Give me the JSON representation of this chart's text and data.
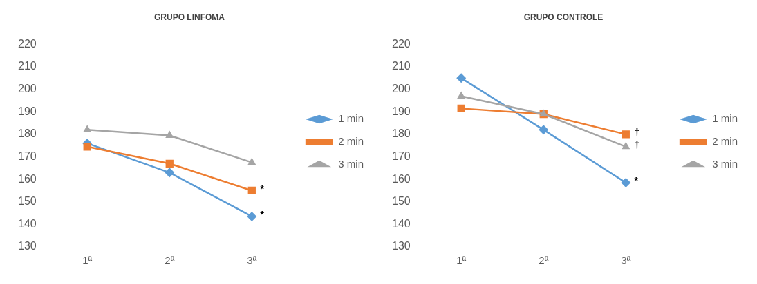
{
  "chart_data": [
    {
      "type": "line",
      "title": "GRUPO LINFOMA",
      "categories": [
        "1ª",
        "2ª",
        "3ª"
      ],
      "series": [
        {
          "name": "1 min",
          "color": "#5b9bd5",
          "marker": "diamond",
          "values": [
            176,
            163,
            143.5
          ]
        },
        {
          "name": "2 min",
          "color": "#ed7d31",
          "marker": "square",
          "values": [
            174.5,
            167,
            155
          ]
        },
        {
          "name": "3 min",
          "color": "#a5a5a5",
          "marker": "triangle",
          "values": [
            182,
            179.5,
            167.5
          ]
        }
      ],
      "ylim": [
        130,
        220
      ],
      "yticks": [
        130,
        140,
        150,
        160,
        170,
        180,
        190,
        200,
        210,
        220
      ],
      "grid": false,
      "legend": "right",
      "annotations": [
        {
          "text": "*",
          "x": "3ª",
          "y": 155
        },
        {
          "text": "*",
          "x": "3ª",
          "y": 143.5
        }
      ]
    },
    {
      "type": "line",
      "title": "GRUPO CONTROLE",
      "categories": [
        "1ª",
        "2ª",
        "3ª"
      ],
      "series": [
        {
          "name": "1 min",
          "color": "#5b9bd5",
          "marker": "diamond",
          "values": [
            205,
            182,
            158.5
          ]
        },
        {
          "name": "2 min",
          "color": "#ed7d31",
          "marker": "square",
          "values": [
            191.5,
            189,
            180
          ]
        },
        {
          "name": "3 min",
          "color": "#a5a5a5",
          "marker": "triangle",
          "values": [
            197,
            189,
            174.5
          ]
        }
      ],
      "ylim": [
        130,
        220
      ],
      "yticks": [
        130,
        140,
        150,
        160,
        170,
        180,
        190,
        200,
        210,
        220
      ],
      "grid": false,
      "legend": "right",
      "annotations": [
        {
          "text": "†",
          "x": "3ª",
          "y": 180
        },
        {
          "text": "†",
          "x": "3ª",
          "y": 174.5
        },
        {
          "text": "*",
          "x": "3ª",
          "y": 158.5
        }
      ]
    }
  ]
}
